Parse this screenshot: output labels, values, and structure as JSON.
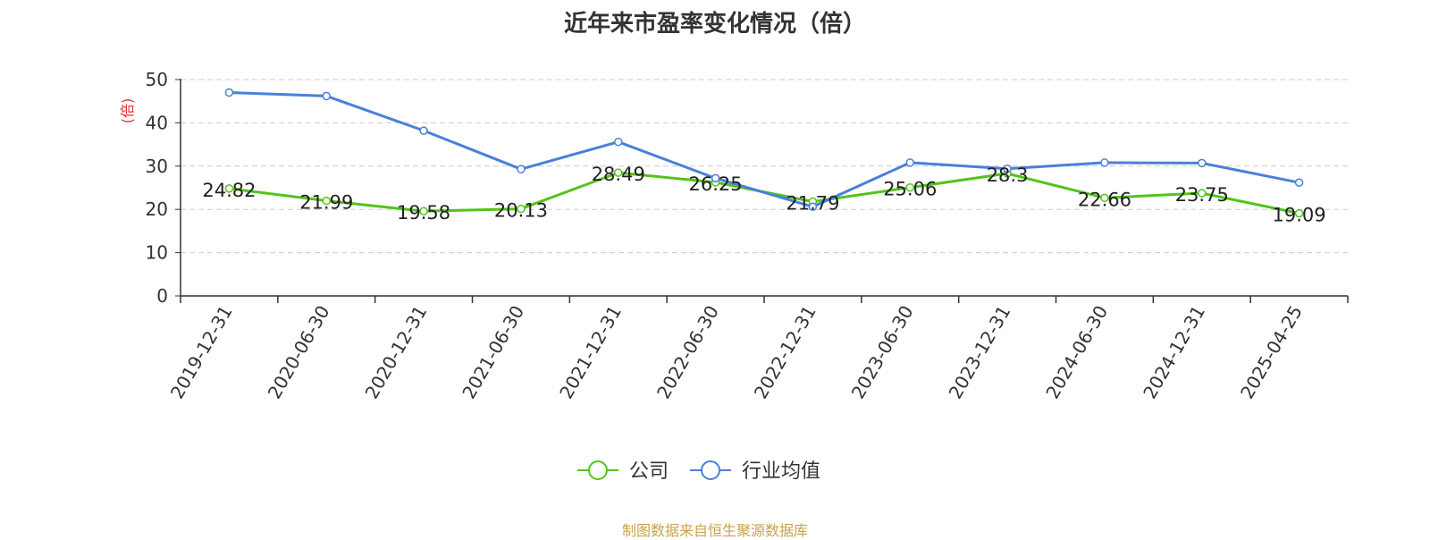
{
  "chart_data": {
    "type": "line",
    "title": "近年来市盈率变化情况（倍）",
    "ylabel": "(倍)",
    "xlabel": "",
    "ylim": [
      0,
      50
    ],
    "yticks": [
      0,
      10,
      20,
      30,
      40,
      50
    ],
    "grid": true,
    "legend_position": "bottom-center",
    "categories": [
      "2019-12-31",
      "2020-06-30",
      "2020-12-31",
      "2021-06-30",
      "2021-12-31",
      "2022-06-30",
      "2022-12-31",
      "2023-06-30",
      "2023-12-31",
      "2024-06-30",
      "2024-12-31",
      "2025-04-25"
    ],
    "series": [
      {
        "name": "公司",
        "color": "#52c41a",
        "values": [
          24.82,
          21.99,
          19.58,
          20.13,
          28.49,
          26.25,
          21.79,
          25.06,
          28.3,
          22.66,
          23.75,
          19.09
        ],
        "labels": [
          "24.82",
          "21.99",
          "19.58",
          "20.13",
          "28.49",
          "26.25",
          "21.79",
          "25.06",
          "28.3",
          "22.66",
          "23.75",
          "19.09"
        ]
      },
      {
        "name": "行业均值",
        "color": "#4a7fdc",
        "values": [
          47.0,
          46.2,
          38.2,
          29.3,
          35.6,
          27.2,
          20.6,
          30.8,
          29.4,
          30.8,
          30.7,
          26.2
        ]
      }
    ]
  },
  "footer": {
    "source": "制图数据来自恒生聚源数据库"
  },
  "colors": {
    "axis_label": "#e0312f",
    "grid": "#cccccc",
    "axis": "#333333",
    "source": "#c9a24a"
  }
}
